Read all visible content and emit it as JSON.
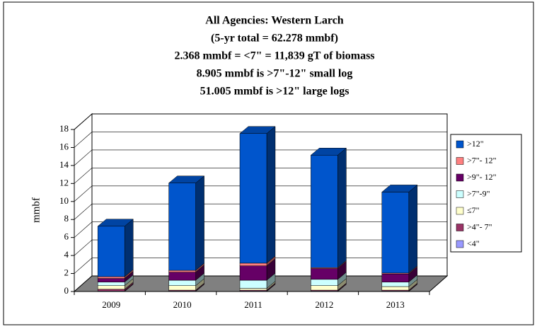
{
  "chart_data": {
    "type": "bar3d_stacked",
    "title": "All Agencies: Western Larch",
    "subtitle": [
      "(5-yr total = 62.278 mmbf)",
      "2.368 mmbf = <7\" = 11,839 gT of biomass",
      "8.905 mmbf is >7\"-12\" small log",
      "51.005 mmbf is >12\" large logs"
    ],
    "y_label": "mmbf",
    "categories": [
      "2009",
      "2010",
      "2011",
      "2012",
      "2013"
    ],
    "ylim": [
      0,
      18
    ],
    "yticks": [
      0,
      2,
      4,
      6,
      8,
      10,
      12,
      14,
      16,
      18
    ],
    "grid": true,
    "legend": "right",
    "series": [
      {
        "name": "<4\"",
        "color": "#9999ff",
        "values": [
          0.05,
          0.05,
          0.05,
          0.05,
          0.05
        ]
      },
      {
        "name": ">4\"- 7\"",
        "color": "#993366",
        "values": [
          0.2,
          0.1,
          0.1,
          0.1,
          0.1
        ]
      },
      {
        "name": "≤7\"",
        "color": "#ffffcc",
        "values": [
          0.4,
          0.5,
          0.2,
          0.5,
          0.4
        ]
      },
      {
        "name": ">7\"-9\"",
        "color": "#ccffff",
        "values": [
          0.4,
          0.6,
          0.9,
          0.7,
          0.5
        ]
      },
      {
        "name": ">9\"- 12\"",
        "color": "#660066",
        "values": [
          0.4,
          0.9,
          1.6,
          1.2,
          0.9
        ]
      },
      {
        "name": ">7\"- 12\"",
        "color": "#ff8080",
        "values": [
          0.2,
          0.2,
          0.3,
          0.1,
          0.1
        ]
      },
      {
        "name": ">12\"",
        "color": "#0055cc",
        "values": [
          5.6,
          9.7,
          14.4,
          12.5,
          9.0
        ]
      }
    ]
  }
}
